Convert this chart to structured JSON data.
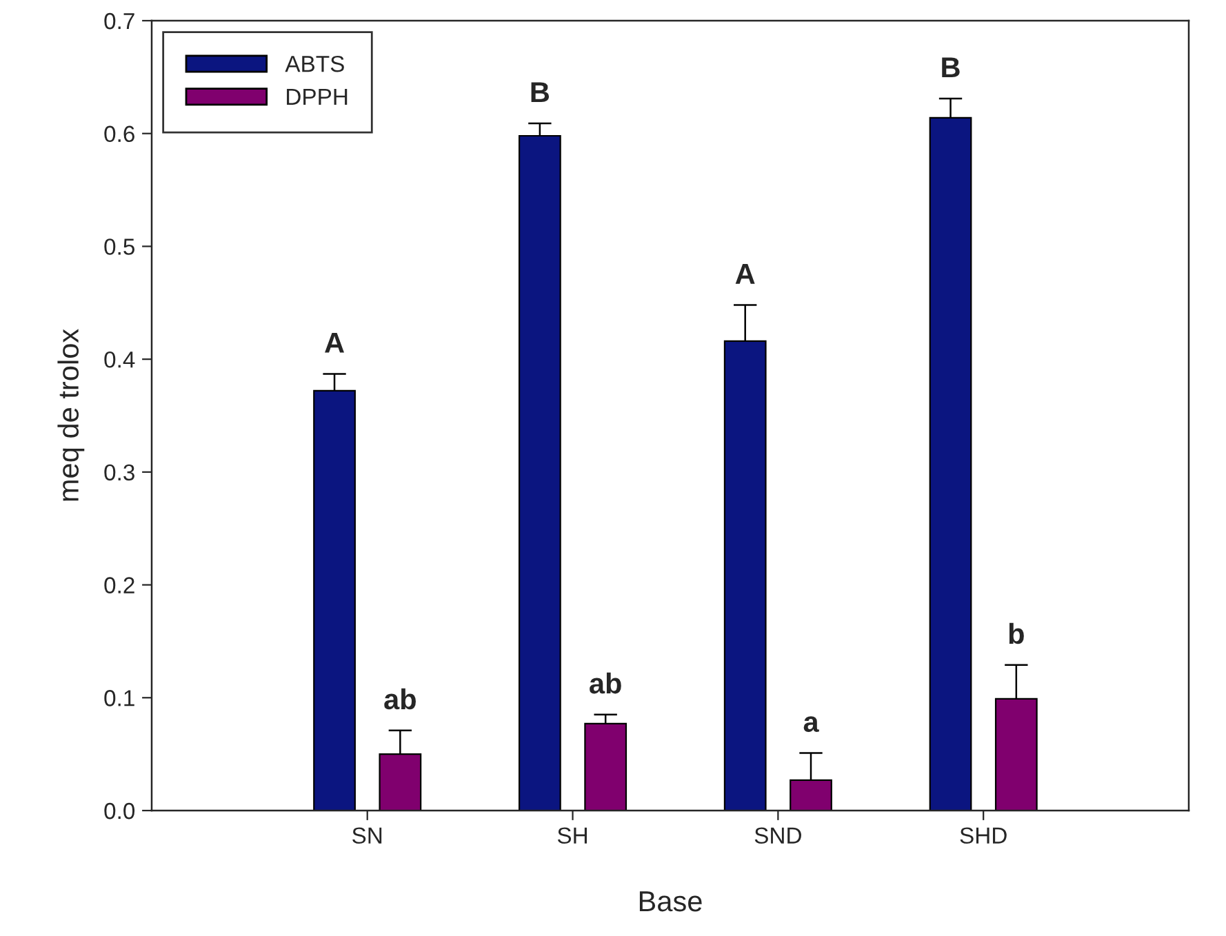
{
  "chart_data": {
    "type": "bar",
    "xlabel": "Base",
    "ylabel": "meq de trolox",
    "categories": [
      "SN",
      "SH",
      "SND",
      "SHD"
    ],
    "series": [
      {
        "name": "ABTS",
        "color": "#0b1580",
        "values": [
          0.372,
          0.598,
          0.416,
          0.614
        ],
        "errors": [
          0.015,
          0.011,
          0.032,
          0.017
        ]
      },
      {
        "name": "DPPH",
        "color": "#80006e",
        "values": [
          0.05,
          0.077,
          0.027,
          0.099
        ],
        "errors": [
          0.021,
          0.008,
          0.024,
          0.03
        ]
      }
    ],
    "ylim": [
      0,
      0.7
    ],
    "yticks": [
      {
        "value": 0,
        "label": "0.0"
      },
      0.1,
      0.2,
      0.3,
      0.4,
      0.5,
      0.6,
      0.7
    ],
    "legend": "top left",
    "grid": false,
    "annotations": [
      "A",
      "B",
      "A",
      "B",
      "ab",
      "ab",
      "a",
      "b"
    ]
  }
}
